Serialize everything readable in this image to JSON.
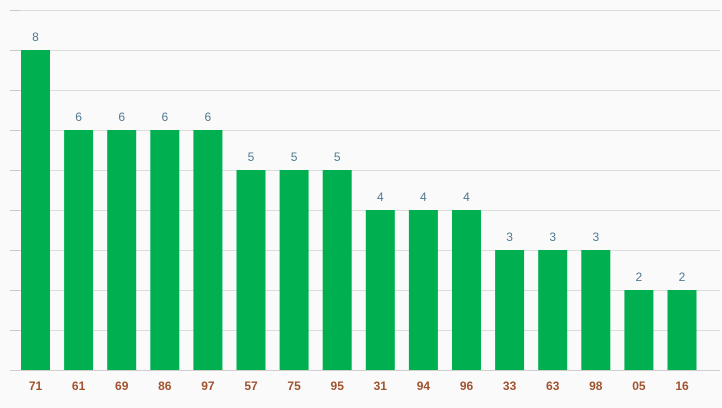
{
  "chart_data": {
    "type": "bar",
    "categories": [
      "71",
      "61",
      "69",
      "86",
      "97",
      "57",
      "75",
      "95",
      "31",
      "94",
      "96",
      "33",
      "63",
      "98",
      "05",
      "16"
    ],
    "values": [
      8,
      6,
      6,
      6,
      6,
      5,
      5,
      5,
      4,
      4,
      4,
      3,
      3,
      3,
      2,
      2
    ],
    "title": "",
    "xlabel": "",
    "ylabel": "",
    "ylim": [
      0,
      9
    ],
    "grid": true,
    "show_y_tick_labels": false,
    "data_labels": true,
    "colors": {
      "bar": "#00b050",
      "value_label": "#4f7a8f",
      "category_label": "#a0522d",
      "grid": "#dcdcdc"
    }
  }
}
